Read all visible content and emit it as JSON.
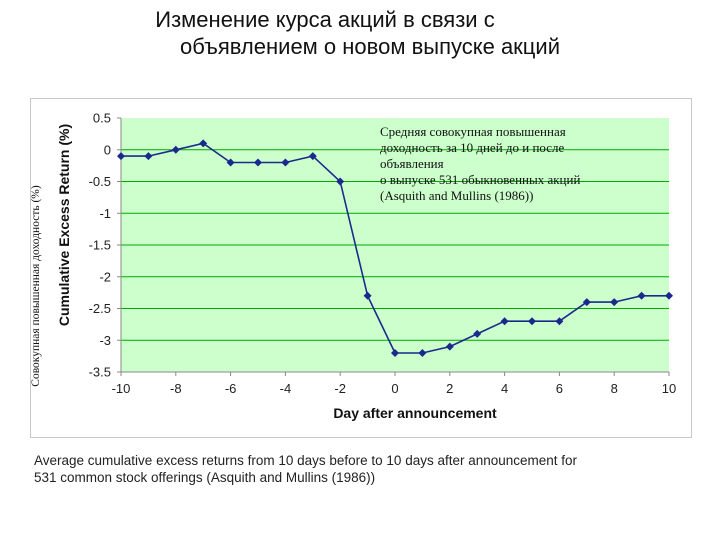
{
  "slide": {
    "title_line1": "Изменение курса акций в связи с",
    "title_line2": "объявлением о новом выпуске акций",
    "annotation_lines": [
      "Средняя совокупная повышенная",
      "доходность за 10 дней до и после",
      "объявления",
      "о выпуске 531 обыкновенных акций",
      "(Asquith and Mullins (1986))"
    ],
    "ru_ylabel": "Совокупная повышенная доходность (%)",
    "caption_line1": "Average cumulative excess returns from 10 days before to 10 days after announcement for",
    "caption_line2": "531 common stock offerings (Asquith and Mullins (1986))"
  },
  "colors": {
    "plot_bg": "#ccffcc",
    "grid": "#00aa00",
    "series": "#1a2a8c",
    "axis": "#888888"
  },
  "chart_data": {
    "type": "line",
    "title": "",
    "xlabel": "Day after announcement",
    "ylabel": "Cumulative Excess Return (%)",
    "xlim": [
      -10,
      10
    ],
    "ylim": [
      -3.5,
      0.5
    ],
    "xticks": [
      -10,
      -8,
      -6,
      -4,
      -2,
      0,
      2,
      4,
      6,
      8,
      10
    ],
    "yticks": [
      0.5,
      0,
      -0.5,
      -1,
      -1.5,
      -2,
      -2.5,
      -3,
      -3.5
    ],
    "ytick_labels": [
      "0.5",
      "0",
      "-0.5",
      "-1",
      "-1.5",
      "-2",
      "-2.5",
      "-3",
      "-3.5"
    ],
    "grid": "horizontal",
    "series": [
      {
        "x": [
          -10,
          -9,
          -8,
          -7,
          -6,
          -5,
          -4,
          -3,
          -2,
          -1,
          0,
          1,
          2,
          3,
          4,
          5,
          6,
          7,
          8,
          9,
          10
        ],
        "values": [
          -0.1,
          -0.1,
          0.0,
          0.1,
          -0.2,
          -0.2,
          -0.2,
          -0.1,
          -0.5,
          -2.3,
          -3.2,
          -3.2,
          -3.1,
          -2.9,
          -2.7,
          -2.7,
          -2.7,
          -2.4,
          -2.4,
          -2.3,
          -2.3
        ]
      }
    ]
  }
}
